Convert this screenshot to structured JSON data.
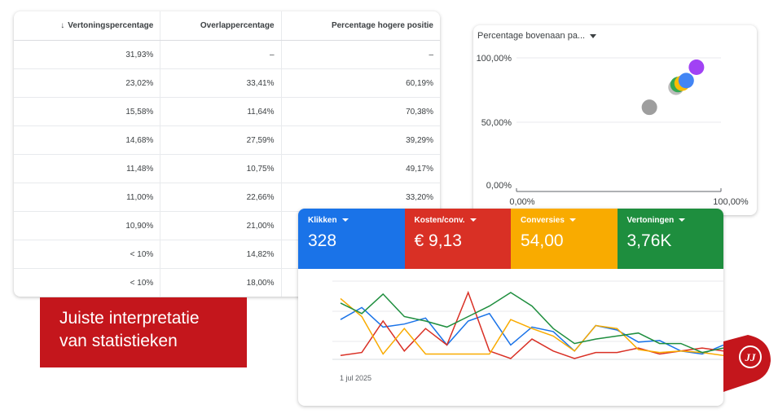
{
  "table": {
    "sort_indicator": "↓",
    "headers": [
      "Vertoningspercentage",
      "Overlappercentage",
      "Percentage hogere positie"
    ],
    "rows": [
      [
        "31,93%",
        "–",
        "–"
      ],
      [
        "23,02%",
        "33,41%",
        "60,19%"
      ],
      [
        "15,58%",
        "11,64%",
        "70,38%"
      ],
      [
        "14,68%",
        "27,59%",
        "39,29%"
      ],
      [
        "11,48%",
        "10,75%",
        "49,17%"
      ],
      [
        "11,00%",
        "22,66%",
        "33,20%"
      ],
      [
        "10,90%",
        "21,00%",
        ""
      ],
      [
        "< 10%",
        "14,82%",
        ""
      ],
      [
        "< 10%",
        "18,00%",
        ""
      ]
    ]
  },
  "scatter": {
    "dropdown_label": "Percentage bovenaan pa...",
    "y_ticks": [
      "100,00%",
      "50,00%",
      "0,00%"
    ],
    "x_ticks": [
      "0,00%",
      "100,00%"
    ],
    "chart_data": {
      "type": "scatter",
      "xlim": [
        0,
        100
      ],
      "ylim": [
        0,
        100
      ],
      "points": [
        {
          "x": 65,
          "y": 63,
          "color": "#9e9e9e"
        },
        {
          "x": 78,
          "y": 78,
          "color": "#bdbdbd"
        },
        {
          "x": 79,
          "y": 80,
          "color": "#34a853"
        },
        {
          "x": 81,
          "y": 81,
          "color": "#fbbc04"
        },
        {
          "x": 83,
          "y": 83,
          "color": "#4285f4"
        },
        {
          "x": 88,
          "y": 93,
          "color": "#a142f4"
        }
      ]
    }
  },
  "label": {
    "line1": "Juiste interpretatie",
    "line2": "van statistieken"
  },
  "metrics": {
    "tiles": [
      {
        "label": "Klikken",
        "value": "328",
        "color": "#1a73e8"
      },
      {
        "label": "Kosten/conv.",
        "value": "€ 9,13",
        "color": "#d93025"
      },
      {
        "label": "Conversies",
        "value": "54,00",
        "color": "#f9ab00"
      },
      {
        "label": "Vertoningen",
        "value": "3,76K",
        "color": "#1e8e3e"
      }
    ],
    "x_label": "1 jul 2025",
    "chart_data": {
      "type": "line",
      "x": [
        0,
        1,
        2,
        3,
        4,
        5,
        6,
        7,
        8,
        9,
        10,
        11,
        12,
        13,
        14,
        15,
        16,
        17,
        18
      ],
      "ylim": [
        0,
        100
      ],
      "series": [
        {
          "color": "#1a73e8",
          "values": [
            52,
            68,
            42,
            46,
            54,
            18,
            50,
            60,
            18,
            42,
            36,
            10,
            44,
            38,
            22,
            24,
            10,
            6,
            18
          ]
        },
        {
          "color": "#d93025",
          "values": [
            4,
            8,
            50,
            10,
            40,
            18,
            88,
            10,
            0,
            26,
            10,
            0,
            8,
            8,
            14,
            6,
            10,
            14,
            10
          ]
        },
        {
          "color": "#f9ab00",
          "values": [
            80,
            56,
            6,
            40,
            6,
            6,
            6,
            6,
            52,
            40,
            30,
            10,
            44,
            40,
            12,
            8,
            10,
            8,
            4
          ]
        },
        {
          "color": "#1e8e3e",
          "values": [
            74,
            60,
            86,
            56,
            50,
            42,
            56,
            70,
            88,
            70,
            40,
            20,
            26,
            30,
            34,
            20,
            20,
            8,
            14
          ]
        }
      ]
    }
  },
  "logo": {
    "glyph": "JJ"
  }
}
